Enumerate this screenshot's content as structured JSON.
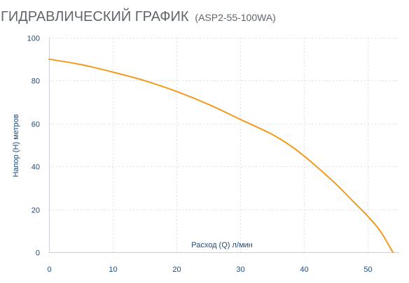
{
  "header": {
    "title": "ГИДРАВЛИЧЕСКИЙ ГРАФИК",
    "model": "(ASP2-55-100WA)"
  },
  "chart_data": {
    "type": "line",
    "xlabel": "Расход (Q) л/мин",
    "ylabel": "Напор (H) метров",
    "xlim": [
      0,
      55
    ],
    "ylim": [
      0,
      100
    ],
    "x_ticks": [
      0,
      10,
      20,
      30,
      40,
      50
    ],
    "y_ticks": [
      0,
      20,
      40,
      60,
      80,
      100
    ],
    "grid": true,
    "series": [
      {
        "color": "#f39a1e",
        "x": [
          0,
          5,
          10,
          15,
          20,
          25,
          30,
          35,
          38,
          40,
          42,
          45,
          48,
          50,
          52,
          54
        ],
        "y": [
          90,
          87.5,
          84,
          80,
          75,
          69,
          62,
          55,
          49.5,
          45,
          40,
          32,
          23,
          17,
          10,
          0
        ]
      }
    ]
  }
}
